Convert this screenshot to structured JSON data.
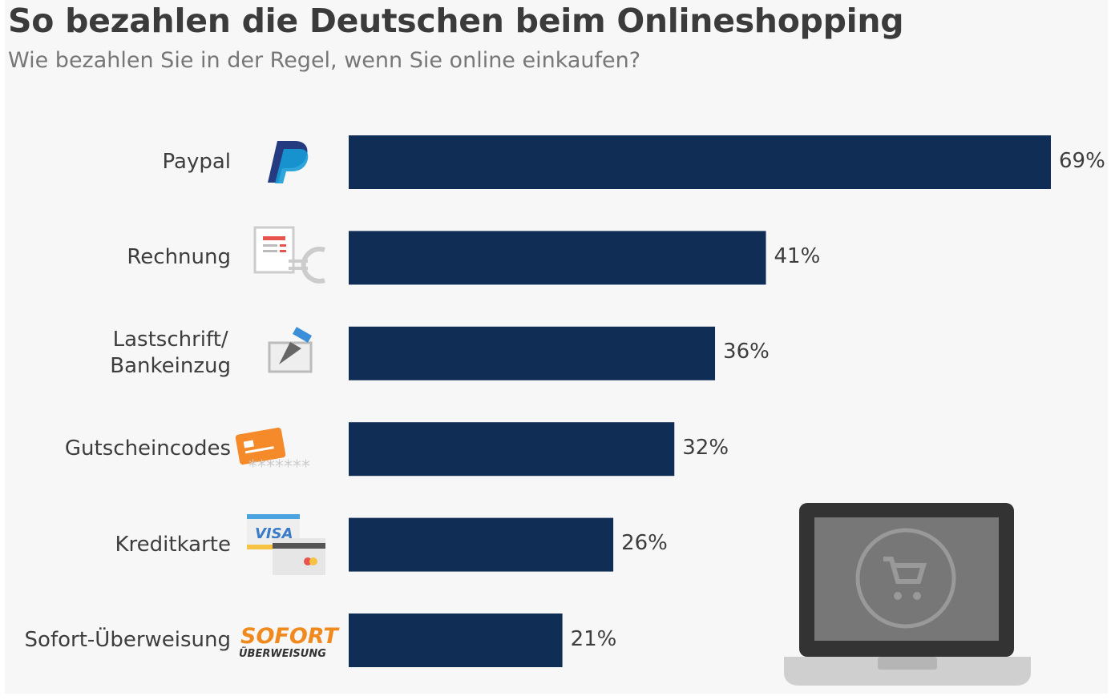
{
  "title": "So bezahlen die Deutschen beim Onlineshopping",
  "subtitle": "Wie bezahlen Sie in der Regel, wenn Sie online einkaufen?",
  "chart_data": {
    "type": "bar",
    "orientation": "horizontal",
    "categories": [
      "Paypal",
      "Rechnung",
      "Lastschrift/\nBankeinzug",
      "Gutscheincodes",
      "Kreditkarte",
      "Sofort-Überweisung"
    ],
    "values": [
      69,
      41,
      36,
      32,
      26,
      21
    ],
    "value_labels": [
      "69%",
      "41%",
      "36%",
      "32%",
      "26%",
      "21%"
    ],
    "unit": "%",
    "xlim": [
      0,
      69
    ],
    "grid": false,
    "bar_color": "#0f2d55",
    "icons": [
      "paypal-logo",
      "invoice-euro-icon",
      "fountain-pen-signature-icon",
      "voucher-card-icon",
      "visa-credit-card-icon",
      "sofort-ueberweisung-logo"
    ],
    "logo_text": {
      "visa": "VISA",
      "sofort": "SOFORT",
      "sofort_sub": "ÜBERWEISUNG",
      "code_mask": "*******"
    }
  },
  "illustration": "laptop-shopping-cart-icon"
}
